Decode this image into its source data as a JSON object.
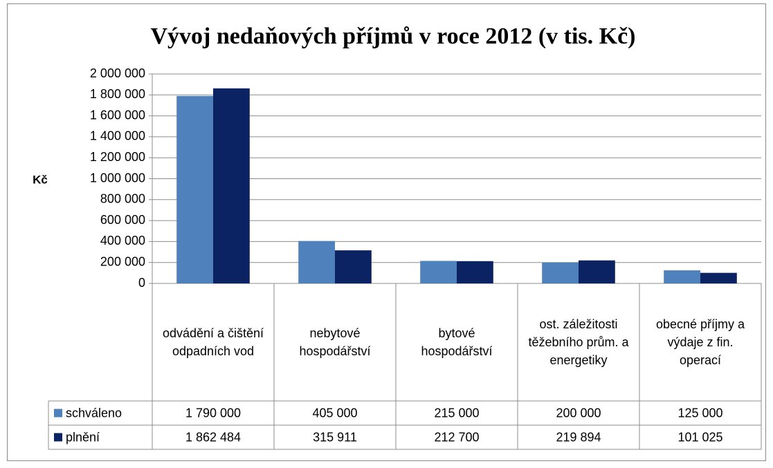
{
  "chart_data": {
    "type": "bar",
    "title": "Vývoj nedaňových příjmů v roce 2012 (v tis. Kč)",
    "y_label": "Kč",
    "categories": [
      "odvádění a čištění odpadních vod",
      "nebytové hospodářství",
      "bytové hospodářství",
      "ost. záležitosti těžebního prům. a energetiky",
      "obecné příjmy a výdaje z fin. operací"
    ],
    "series": [
      {
        "name": "schváleno",
        "color": "#4f81bd",
        "values": [
          1790000,
          405000,
          215000,
          200000,
          125000
        ],
        "value_labels": [
          "1 790 000",
          "405 000",
          "215 000",
          "200 000",
          "125 000"
        ]
      },
      {
        "name": "plnění",
        "color": "#0b2263",
        "values": [
          1862484,
          315911,
          212700,
          219894,
          101025
        ],
        "value_labels": [
          "1 862 484",
          "315 911",
          "212 700",
          "219 894",
          "101 025"
        ]
      }
    ],
    "ylim": [
      0,
      2000000
    ],
    "yticks": [
      0,
      {
        "value": 200000,
        "label": "200 000"
      },
      {
        "value": 400000,
        "label": "400 000"
      },
      {
        "value": 600000,
        "label": "600 000"
      },
      {
        "value": 800000,
        "label": "800 000"
      },
      {
        "value": 1000000,
        "label": "1 000 000"
      },
      {
        "value": 1200000,
        "label": "1 200 000"
      },
      {
        "value": 1400000,
        "label": "1 400 000"
      },
      {
        "value": 1600000,
        "label": "1 600 000"
      },
      {
        "value": 1800000,
        "label": "1 800 000"
      },
      {
        "value": 2000000,
        "label": "2 000 000"
      }
    ],
    "grid": true
  }
}
